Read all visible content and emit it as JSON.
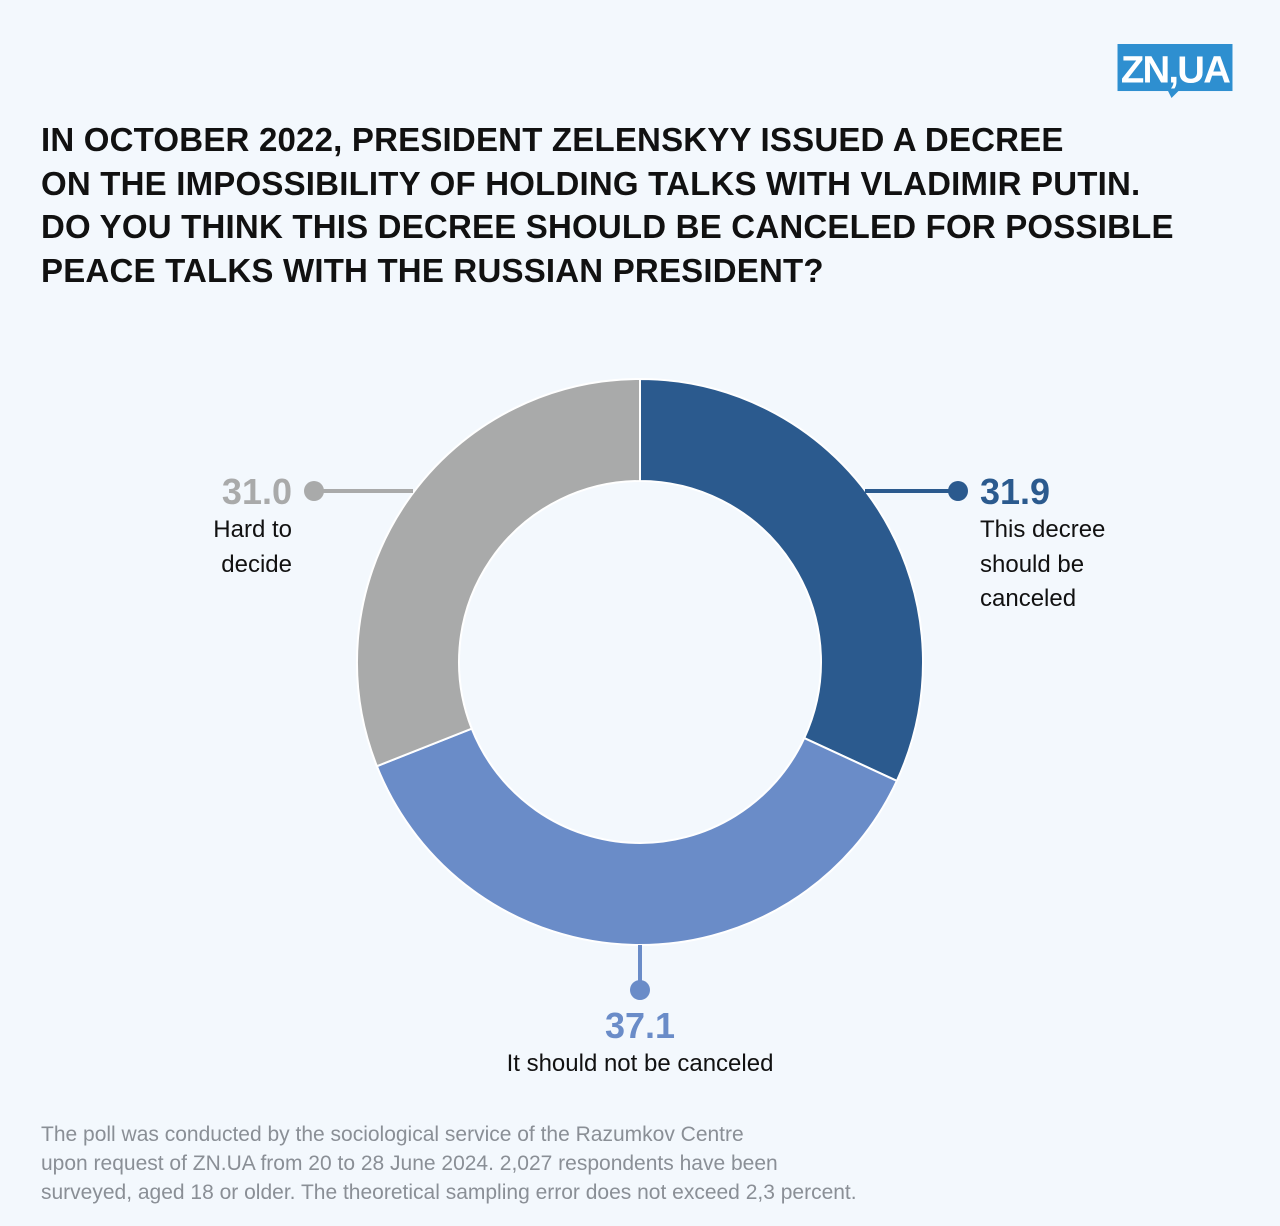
{
  "logo": {
    "text": "ZN,UA",
    "color": "#2E8FD0"
  },
  "title_lines": [
    "IN OCTOBER 2022, PRESIDENT ZELENSKYY ISSUED A DECREE",
    "ON THE IMPOSSIBILITY OF HOLDING TALKS WITH VLADIMIR PUTIN.",
    "DO YOU THINK THIS DECREE SHOULD BE CANCELED FOR POSSIBLE",
    "PEACE TALKS WITH THE RUSSIAN PRESIDENT?"
  ],
  "chart_data": {
    "type": "pie",
    "donut": true,
    "title": "In October 2022, President Zelenskyy issued a decree on the impossibility of holding talks with Vladimir Putin. Do you think this decree should be canceled for possible peace talks with the Russian president?",
    "unit": "%",
    "slices": [
      {
        "label": "This decree should be canceled",
        "value": 31.9,
        "value_text": "31.9",
        "color": "#2B5A8E"
      },
      {
        "label": "It should not be canceled",
        "value": 37.1,
        "value_text": "37.1",
        "color": "#6A8CC8"
      },
      {
        "label": "Hard to decide",
        "value": 31.0,
        "value_text": "31.0",
        "color": "#A9AAAA"
      }
    ]
  },
  "labels": {
    "canceled": {
      "value": "31.9",
      "lines": [
        "This decree",
        "should be",
        "canceled"
      ]
    },
    "not_canceled": {
      "value": "37.1",
      "lines": [
        "It should not be canceled"
      ]
    },
    "hard": {
      "value": "31.0",
      "lines": [
        "Hard to",
        "decide"
      ]
    }
  },
  "footnote_lines": [
    "The poll was conducted by the sociological service of the Razumkov Centre",
    "upon request of ZN.UA from 20 to 28 June 2024. 2,027 respondents have been",
    "surveyed, aged 18 or older. The theoretical sampling error does not exceed 2,3 percent."
  ]
}
